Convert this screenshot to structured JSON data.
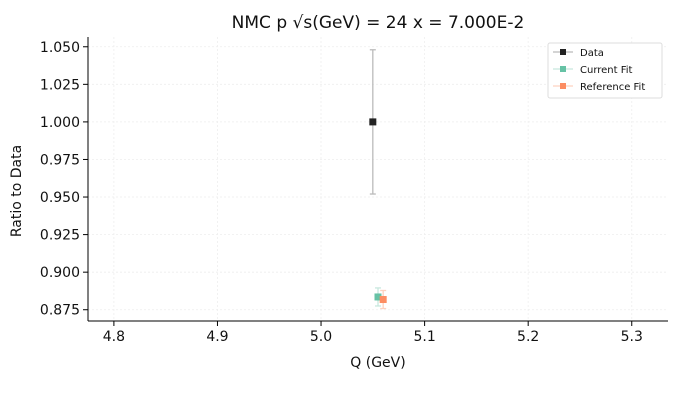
{
  "chart_data": {
    "type": "scatter",
    "title": "NMC p √s(GeV) = 24 x = 7.000E-2",
    "xlabel": "Q (GeV)",
    "ylabel": "Ratio to Data",
    "xlim": [
      4.775,
      5.335
    ],
    "ylim": [
      0.8675,
      1.0565
    ],
    "xticks": [
      4.8,
      4.9,
      5.0,
      5.1,
      5.2,
      5.3
    ],
    "xtick_labels": [
      "4.8",
      "4.9",
      "5.0",
      "5.1",
      "5.2",
      "5.3"
    ],
    "yticks": [
      0.875,
      0.9,
      0.925,
      0.95,
      0.975,
      1.0,
      1.025,
      1.05
    ],
    "ytick_labels": [
      "0.875",
      "0.900",
      "0.925",
      "0.950",
      "0.975",
      "1.000",
      "1.025",
      "1.050"
    ],
    "grid": true,
    "legend_position": "top-right",
    "series": [
      {
        "name": "Data",
        "color": "#222222",
        "errcolor": "#bbbbbb",
        "points": [
          {
            "x": 5.05,
            "y": 1.0,
            "yerr": 0.048
          }
        ]
      },
      {
        "name": "Current Fit",
        "color": "#66c2a5",
        "errcolor": "#c8e8de",
        "points": [
          {
            "x": 5.055,
            "y": 0.8835,
            "yerr": 0.006
          }
        ]
      },
      {
        "name": "Reference Fit",
        "color": "#fc8d62",
        "errcolor": "#fdd2c0",
        "points": [
          {
            "x": 5.06,
            "y": 0.8818,
            "yerr": 0.006
          }
        ]
      }
    ]
  }
}
